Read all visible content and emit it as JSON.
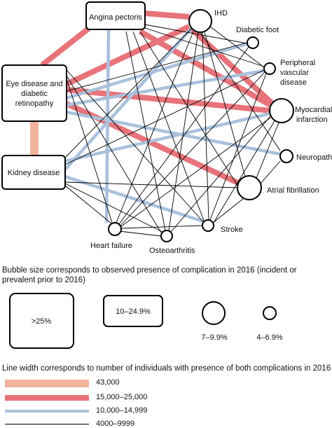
{
  "nodes": {
    "angina": "Angina pectoris",
    "eye": [
      "Eye disease and",
      "diabetic",
      "retinopathy"
    ],
    "kidney": "Kidney disease",
    "ihd": "IHD",
    "diabetic_foot": "Diabetic foot",
    "peripheral": [
      "Peripheral",
      "vascular",
      "disease"
    ],
    "mi": [
      "Myocardial",
      "infarction"
    ],
    "neuropathy": "Neuropathy",
    "af": "Atrial fibrillation",
    "stroke": "Stroke",
    "heart_failure": "Heart failure",
    "osteoarthritis": "Osteoarthritis"
  },
  "size_legend": {
    "title": "Bubble size corresponds to observed presence of complication in 2016 (incident or prevalent prior to 2016)",
    "items": [
      ">25%",
      "10–24.9%",
      "7–9.9%",
      "4–6.9%"
    ]
  },
  "width_legend": {
    "title": "Line width corresponds to number of individuals with presence of both complications in 2016",
    "items": [
      {
        "label": "43,000",
        "color": "#f2b49b"
      },
      {
        "label": "15,000–25,000",
        "color": "#e8737a"
      },
      {
        "label": "10,000–14,999",
        "color": "#a9c1dc"
      },
      {
        "label": "4000–9999",
        "color": "#000000"
      }
    ]
  }
}
